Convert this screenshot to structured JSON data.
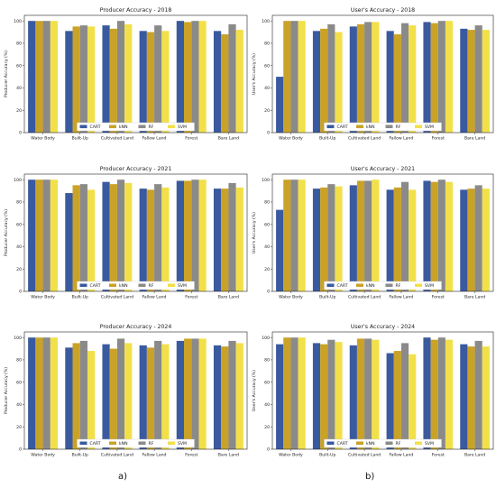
{
  "colors": {
    "CART": "#3a5a9f",
    "kNN": "#c9a227",
    "RF": "#8a8a8a",
    "SVM": "#f2e04a"
  },
  "captions": {
    "left": "a)",
    "right": "b)"
  },
  "chart_data": [
    {
      "type": "bar",
      "title": "Producer Accuracy - 2018",
      "xlabel": "",
      "ylabel": "Producer Accuracy (%)",
      "ylim": [
        0,
        105
      ],
      "yticks": [
        0,
        20,
        40,
        60,
        80,
        100
      ],
      "categories": [
        "Water Body",
        "Built-Up",
        "Cultivated Land",
        "Fallow Land",
        "Forest",
        "Bare Land"
      ],
      "series": [
        {
          "name": "CART",
          "values": [
            100,
            91,
            96,
            91,
            100,
            91
          ]
        },
        {
          "name": "kNN",
          "values": [
            100,
            95,
            93,
            90,
            99,
            88
          ]
        },
        {
          "name": "RF",
          "values": [
            100,
            96,
            100,
            96,
            100,
            97
          ]
        },
        {
          "name": "SVM",
          "values": [
            100,
            95,
            97,
            91,
            100,
            92
          ]
        }
      ],
      "legend": "bottom"
    },
    {
      "type": "bar",
      "title": "User's Accuracy - 2018",
      "xlabel": "",
      "ylabel": "User's Accuracy (%)",
      "ylim": [
        0,
        105
      ],
      "yticks": [
        0,
        20,
        40,
        60,
        80,
        100
      ],
      "categories": [
        "Water Body",
        "Built-Up",
        "Cultivated Land",
        "Fallow Land",
        "Forest",
        "Bare Land"
      ],
      "series": [
        {
          "name": "CART",
          "values": [
            50,
            91,
            95,
            91,
            99,
            93
          ]
        },
        {
          "name": "kNN",
          "values": [
            100,
            93,
            97,
            88,
            98,
            92
          ]
        },
        {
          "name": "RF",
          "values": [
            100,
            97,
            99,
            98,
            100,
            96
          ]
        },
        {
          "name": "SVM",
          "values": [
            100,
            90,
            99,
            96,
            100,
            92
          ]
        }
      ],
      "legend": "bottom"
    },
    {
      "type": "bar",
      "title": "Producer Accuracy - 2021",
      "xlabel": "",
      "ylabel": "Producer Accuracy (%)",
      "ylim": [
        0,
        105
      ],
      "yticks": [
        0,
        20,
        40,
        60,
        80,
        100
      ],
      "categories": [
        "Water Body",
        "Built-Up",
        "Cultivated Land",
        "Fallow Land",
        "Forest",
        "Bare Land"
      ],
      "series": [
        {
          "name": "CART",
          "values": [
            100,
            88,
            98,
            92,
            99,
            92
          ]
        },
        {
          "name": "kNN",
          "values": [
            100,
            95,
            96,
            91,
            99,
            92
          ]
        },
        {
          "name": "RF",
          "values": [
            100,
            96,
            100,
            96,
            100,
            97
          ]
        },
        {
          "name": "SVM",
          "values": [
            100,
            91,
            97,
            93,
            100,
            93
          ]
        }
      ],
      "legend": "bottom"
    },
    {
      "type": "bar",
      "title": "User's Accuracy - 2021",
      "xlabel": "",
      "ylabel": "User's Accuracy (%)",
      "ylim": [
        0,
        105
      ],
      "yticks": [
        0,
        20,
        40,
        60,
        80,
        100
      ],
      "categories": [
        "Water Body",
        "Built-Up",
        "Cultivated Land",
        "Fallow Land",
        "Forest",
        "Bare Land"
      ],
      "series": [
        {
          "name": "CART",
          "values": [
            73,
            92,
            95,
            91,
            99,
            91
          ]
        },
        {
          "name": "kNN",
          "values": [
            100,
            93,
            99,
            93,
            98,
            92
          ]
        },
        {
          "name": "RF",
          "values": [
            100,
            96,
            99,
            98,
            100,
            95
          ]
        },
        {
          "name": "SVM",
          "values": [
            100,
            94,
            100,
            91,
            98,
            92
          ]
        }
      ],
      "legend": "bottom"
    },
    {
      "type": "bar",
      "title": "Producer Accuracy - 2024",
      "xlabel": "",
      "ylabel": "Producer Accuracy (%)",
      "ylim": [
        0,
        105
      ],
      "yticks": [
        0,
        20,
        40,
        60,
        80,
        100
      ],
      "categories": [
        "Water Body",
        "Built-Up",
        "Cultivated Land",
        "Fallow Land",
        "Forest",
        "Bare Land"
      ],
      "series": [
        {
          "name": "CART",
          "values": [
            100,
            91,
            94,
            93,
            97,
            93
          ]
        },
        {
          "name": "kNN",
          "values": [
            100,
            95,
            90,
            91,
            99,
            92
          ]
        },
        {
          "name": "RF",
          "values": [
            100,
            97,
            99,
            97,
            99,
            97
          ]
        },
        {
          "name": "SVM",
          "values": [
            100,
            88,
            95,
            94,
            99,
            95
          ]
        }
      ],
      "legend": "bottom"
    },
    {
      "type": "bar",
      "title": "User's Accuracy - 2024",
      "xlabel": "",
      "ylabel": "User's Accuracy (%)",
      "ylim": [
        0,
        105
      ],
      "yticks": [
        0,
        20,
        40,
        60,
        80,
        100
      ],
      "categories": [
        "Water Body",
        "Built-Up",
        "Cultivated Land",
        "Fallow Land",
        "Forest",
        "Bare Land"
      ],
      "series": [
        {
          "name": "CART",
          "values": [
            94,
            95,
            93,
            86,
            100,
            94
          ]
        },
        {
          "name": "kNN",
          "values": [
            100,
            94,
            99,
            88,
            98,
            92
          ]
        },
        {
          "name": "RF",
          "values": [
            100,
            98,
            99,
            95,
            100,
            97
          ]
        },
        {
          "name": "SVM",
          "values": [
            100,
            96,
            98,
            85,
            98,
            92
          ]
        }
      ],
      "legend": "bottom"
    }
  ]
}
